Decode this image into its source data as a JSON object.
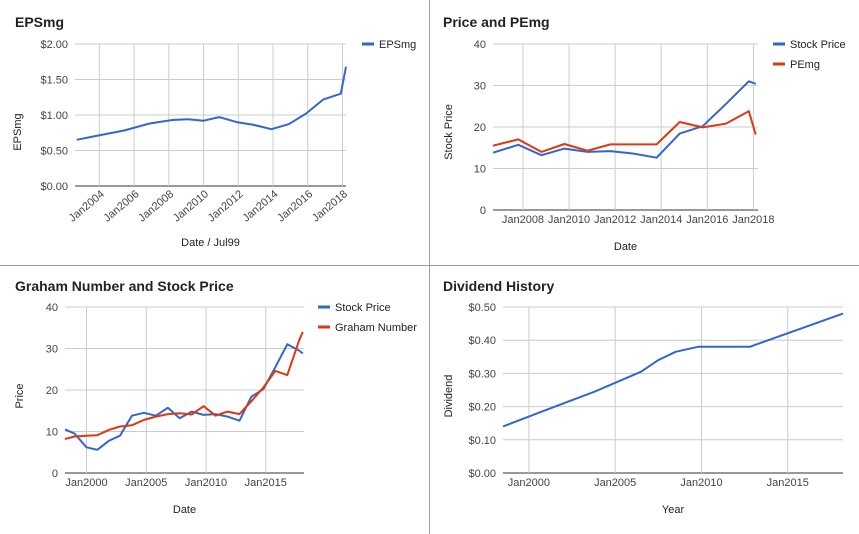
{
  "colors": {
    "blue": "#3366cc",
    "red": "#dc3912",
    "grid": "#cccccc",
    "axis": "#333333"
  },
  "chart_data": [
    {
      "type": "line",
      "title": "EPSmg",
      "xlabel": "Date / Jul99",
      "ylabel": "EPSmg",
      "xlim": [
        2002.6,
        2018.2
      ],
      "ylim": [
        0,
        2
      ],
      "x_ticks": [
        2004,
        2006,
        2008,
        2010,
        2012,
        2014,
        2016,
        2018
      ],
      "x_tick_labels": [
        "Jan2004",
        "Jan2006",
        "Jan2008",
        "Jan2010",
        "Jan2012",
        "Jan2014",
        "Jan2016",
        "Jan2018"
      ],
      "y_ticks": [
        0,
        0.5,
        1,
        1.5,
        2
      ],
      "y_tick_labels": [
        "$0.00",
        "$0.50",
        "$1.00",
        "$1.50",
        "$2.00"
      ],
      "legend_position": "right",
      "series": [
        {
          "name": "EPSmg",
          "color": "#3366cc",
          "x": [
            2002.7,
            2003.9,
            2005.4,
            2006.9,
            2008.2,
            2009.1,
            2010.0,
            2010.9,
            2011.9,
            2012.9,
            2013.9,
            2014.9,
            2015.9,
            2016.9,
            2017.9,
            2018.2
          ],
          "y": [
            0.65,
            0.71,
            0.78,
            0.88,
            0.93,
            0.94,
            0.92,
            0.97,
            0.9,
            0.86,
            0.8,
            0.87,
            1.02,
            1.22,
            1.3,
            1.68
          ]
        }
      ]
    },
    {
      "type": "line",
      "title": "Price and PEmg",
      "xlabel": "Date",
      "ylabel": "Stock Price",
      "xlim": [
        2006.7,
        2018.2
      ],
      "ylim": [
        0,
        40
      ],
      "x_ticks": [
        2008,
        2010,
        2012,
        2014,
        2016,
        2018
      ],
      "x_tick_labels": [
        "Jan2008",
        "Jan2010",
        "Jan2012",
        "Jan2014",
        "Jan2016",
        "Jan2018"
      ],
      "y_ticks": [
        0,
        10,
        20,
        30,
        40
      ],
      "y_tick_labels": [
        "0",
        "10",
        "20",
        "30",
        "40"
      ],
      "legend_position": "right",
      "series": [
        {
          "name": "Stock Price",
          "color": "#3366cc",
          "x": [
            2006.7,
            2007.8,
            2008.8,
            2009.8,
            2010.8,
            2011.8,
            2012.8,
            2013.8,
            2014.8,
            2015.8,
            2016.8,
            2017.8,
            2018.1
          ],
          "y": [
            13.8,
            15.7,
            13.2,
            14.8,
            14.0,
            14.2,
            13.6,
            12.6,
            18.4,
            20.2,
            25.5,
            31.0,
            30.4
          ]
        },
        {
          "name": "PEmg",
          "color": "#dc3912",
          "x": [
            2006.7,
            2007.8,
            2008.8,
            2009.8,
            2010.8,
            2011.8,
            2012.8,
            2013.8,
            2014.8,
            2015.8,
            2016.8,
            2017.8,
            2018.1
          ],
          "y": [
            15.5,
            17.0,
            14.0,
            15.9,
            14.3,
            15.8,
            15.8,
            15.8,
            21.2,
            19.9,
            20.8,
            23.8,
            18.2
          ]
        }
      ]
    },
    {
      "type": "line",
      "title": "Graham Number and Stock Price",
      "xlabel": "Date",
      "ylabel": "Price",
      "xlim": [
        1998.2,
        2018.2
      ],
      "ylim": [
        0,
        40
      ],
      "x_ticks": [
        2000,
        2005,
        2010,
        2015
      ],
      "x_tick_labels": [
        "Jan2000",
        "Jan2005",
        "Jan2010",
        "Jan2015"
      ],
      "y_ticks": [
        0,
        10,
        20,
        30,
        40
      ],
      "y_tick_labels": [
        "0",
        "10",
        "20",
        "30",
        "40"
      ],
      "legend_position": "right",
      "series": [
        {
          "name": "Stock Price",
          "color": "#3366cc",
          "x": [
            1998.2,
            1999.0,
            2000.0,
            2000.9,
            2001.9,
            2002.8,
            2003.8,
            2004.8,
            2005.8,
            2006.8,
            2007.8,
            2008.8,
            2009.8,
            2010.8,
            2011.8,
            2012.8,
            2013.8,
            2014.8,
            2015.8,
            2016.8,
            2017.8,
            2018.1
          ],
          "y": [
            10.5,
            9.5,
            6.2,
            5.6,
            7.8,
            9.0,
            13.8,
            14.5,
            13.8,
            15.7,
            13.2,
            14.8,
            14.0,
            14.2,
            13.6,
            12.6,
            18.4,
            20.2,
            25.5,
            31.0,
            29.5,
            28.8
          ]
        },
        {
          "name": "Graham Number",
          "color": "#dc3912",
          "x": [
            1998.2,
            1999.0,
            2000.0,
            2000.9,
            2001.9,
            2002.8,
            2003.8,
            2004.8,
            2005.8,
            2006.8,
            2007.8,
            2008.8,
            2009.8,
            2010.8,
            2011.8,
            2012.8,
            2013.8,
            2014.8,
            2015.8,
            2016.8,
            2017.8,
            2018.1
          ],
          "y": [
            8.2,
            8.8,
            9.0,
            9.1,
            10.4,
            11.2,
            11.5,
            12.8,
            13.6,
            14.2,
            14.4,
            14.1,
            16.1,
            13.8,
            14.8,
            14.2,
            17.3,
            20.6,
            24.6,
            23.6,
            32.0,
            34.0
          ]
        }
      ]
    },
    {
      "type": "line",
      "title": "Dividend History",
      "xlabel": "Year",
      "ylabel": "Dividend",
      "xlim": [
        1998.5,
        2018.2
      ],
      "ylim": [
        0,
        0.5
      ],
      "x_ticks": [
        2000,
        2005,
        2010,
        2015
      ],
      "x_tick_labels": [
        "Jan2000",
        "Jan2005",
        "Jan2010",
        "Jan2015"
      ],
      "y_ticks": [
        0,
        0.1,
        0.2,
        0.3,
        0.4,
        0.5
      ],
      "y_tick_labels": [
        "$0.00",
        "$0.10",
        "$0.20",
        "$0.30",
        "$0.40",
        "$0.50"
      ],
      "legend_position": "none",
      "series": [
        {
          "name": "",
          "color": "#3366cc",
          "x": [
            1998.5,
            2001.0,
            2003.8,
            2006.5,
            2007.5,
            2008.5,
            2009.8,
            2011.5,
            2012.8,
            2018.2
          ],
          "y": [
            0.14,
            0.19,
            0.245,
            0.305,
            0.34,
            0.365,
            0.38,
            0.38,
            0.38,
            0.48
          ]
        }
      ]
    }
  ]
}
